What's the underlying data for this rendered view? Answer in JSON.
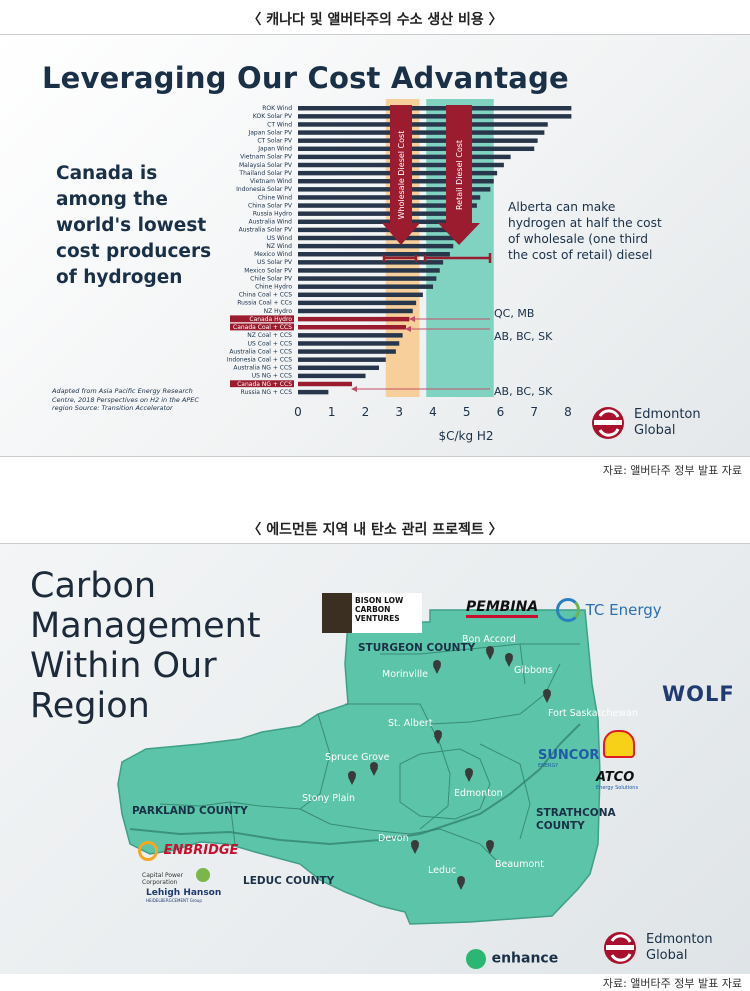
{
  "top": {
    "caption": "〈 캐나다 및 앨버타주의 수소 생산 비용 〉",
    "source": "자료: 앨버타주 정부 발표 자료",
    "title": "Leveraging Our Cost Advantage",
    "lead_text": "Canada is among the world's lowest cost producers of hydrogen",
    "note": "Alberta can make hydrogen at half the cost of wholesale (one third the cost of retail) diesel",
    "source_note": "Adapted from Asia Pacific Energy Research Centre, 2018 Perspectives on H2 in the APEC region Source: Transition Accelerator",
    "logo_line1": "Edmonton",
    "logo_line2": "Global",
    "band_labels": [
      "Wholesale Diesel Cost",
      "Retail Diesel Cost"
    ],
    "annotations": [
      "QC, MB",
      "AB, BC, SK",
      "AB, BC, SK"
    ]
  },
  "chart_data": {
    "type": "bar",
    "orientation": "horizontal",
    "categories": [
      "ROK Wind",
      "KOK Solar PV",
      "CT Wind",
      "Japan Solar PV",
      "CT Solar PV",
      "Japan Wind",
      "Vietnam Solar PV",
      "Malaysia Solar PV",
      "Thailand Solar PV",
      "Vietnam Wind",
      "Indonesia Solar PV",
      "Chine Wind",
      "China Solar PV",
      "Russia Hydro",
      "Australia Wind",
      "Australia Solar PV",
      "US Wind",
      "NZ Wind",
      "Mexico Wind",
      "US Solar PV",
      "Mexico Solar PV",
      "Chile Solar PV",
      "Chine Hydro",
      "China Coal + CCS",
      "Russia Coal + CCs",
      "NZ Hydro",
      "Canada Hydro",
      "Canada Coal + CCS",
      "NZ Coal + CCS",
      "US Coal + CCS",
      "Australia Coal + CCS",
      "Indonesia Coal + CCS",
      "Australia NG + CCS",
      "US NG + CCS",
      "Canada NG + CCS",
      "Russia NG + CCS"
    ],
    "values": [
      8.1,
      8.1,
      7.4,
      7.3,
      7.1,
      7.0,
      6.3,
      6.1,
      5.9,
      5.8,
      5.7,
      5.4,
      5.3,
      5.1,
      5.0,
      4.9,
      4.8,
      4.6,
      4.5,
      4.3,
      4.2,
      4.1,
      4.0,
      3.7,
      3.5,
      3.4,
      3.3,
      3.2,
      3.1,
      3.0,
      2.9,
      2.6,
      2.4,
      2.0,
      1.6,
      0.9
    ],
    "highlighted": [
      "Canada Hydro",
      "Canada Coal + CCS",
      "Canada NG + CCS"
    ],
    "bands": [
      {
        "label": "Wholesale Diesel Cost",
        "range": [
          2.6,
          3.6
        ]
      },
      {
        "label": "Retail Diesel Cost",
        "range": [
          3.8,
          5.8
        ]
      }
    ],
    "xlabel": "$C/kg H2",
    "xticks": [
      "0",
      "1",
      "2",
      "3",
      "4",
      "5",
      "6",
      "7",
      "8"
    ],
    "xlim": [
      0,
      8
    ],
    "colors": {
      "bar": "#27364a",
      "highlight": "#9b1c2e",
      "wholesale": "#f6cf9b",
      "retail": "#7fd3c0",
      "arrow": "#9b1c2e"
    }
  },
  "bottom": {
    "caption": "〈 에드먼튼 지역 내 탄소 관리 프로젝트 〉",
    "source": "자료: 앨버타주 정부 발표 자료",
    "title_lines": [
      "Carbon",
      "Management",
      "Within Our",
      "Region"
    ],
    "map_labels": {
      "sturgeon": "STURGEON COUNTY",
      "parkland": "PARKLAND COUNTY",
      "leduc_county": "LEDUC COUNTY",
      "strathcona": "STRATHCONA COUNTY",
      "bon_accord": "Bon Accord",
      "gibbons": "Gibbons",
      "morinville": "Morinville",
      "fort_sask": "Fort Saskatchewan",
      "st_albert": "St. Albert",
      "spruce_grove": "Spruce Grove",
      "stony_plain": "Stony Plain",
      "edmonton": "Edmonton",
      "devon": "Devon",
      "beaumont": "Beaumont",
      "leduc": "Leduc"
    },
    "logos": {
      "bison": "BISON LOW CARBON VENTURES",
      "pembina": "PEMBINA",
      "tc": "TC Energy",
      "wolf": "WOLF",
      "suncor": "SUNCOR",
      "suncor_sub": "ENERGY",
      "atco": "ATCO",
      "atco_sub": "Energy Solutions",
      "enbridge": "ENBRIDGE",
      "capital_power": "Capital Power Corporation",
      "lehigh": "Lehigh Hanson",
      "lehigh_sub": "HEIDELBERGCEMENT Group",
      "enhance": "enhance",
      "edm1": "Edmonton",
      "edm2": "Global"
    },
    "colors": {
      "map": "#5cc4a8",
      "edge": "#2f7f6c"
    }
  }
}
